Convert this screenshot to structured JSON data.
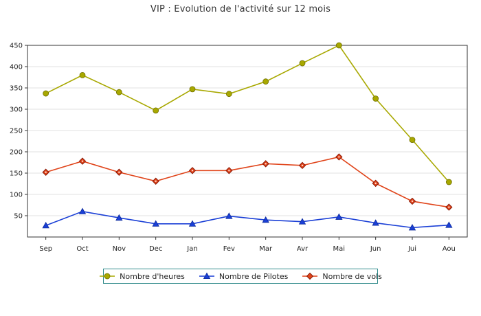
{
  "chart_data": {
    "type": "line",
    "title": "VIP : Evolution de l'activité sur 12 mois",
    "xlabel": "",
    "ylabel": "",
    "categories": [
      "Sep",
      "Oct",
      "Nov",
      "Dec",
      "Jan",
      "Fev",
      "Mar",
      "Avr",
      "Mai",
      "Jun",
      "Jui",
      "Aou"
    ],
    "ylim": [
      0,
      450
    ],
    "yticks": [
      50,
      100,
      150,
      200,
      250,
      300,
      350,
      400,
      450
    ],
    "grid": true,
    "legend_position": "bottom",
    "series": [
      {
        "name": "Nombre d'heures",
        "color": "#a8a800",
        "marker": "circle",
        "values": [
          337,
          380,
          340,
          297,
          347,
          336,
          365,
          408,
          450,
          325,
          228,
          129
        ]
      },
      {
        "name": "Nombre de Pilotes",
        "color": "#1a3fd6",
        "marker": "triangle",
        "values": [
          27,
          60,
          45,
          31,
          31,
          49,
          40,
          36,
          47,
          33,
          22,
          28
        ]
      },
      {
        "name": "Nombre de vols",
        "color": "#e0441a",
        "marker": "diamond",
        "values": [
          152,
          178,
          152,
          131,
          156,
          156,
          172,
          168,
          188,
          126,
          84,
          70
        ]
      }
    ]
  }
}
